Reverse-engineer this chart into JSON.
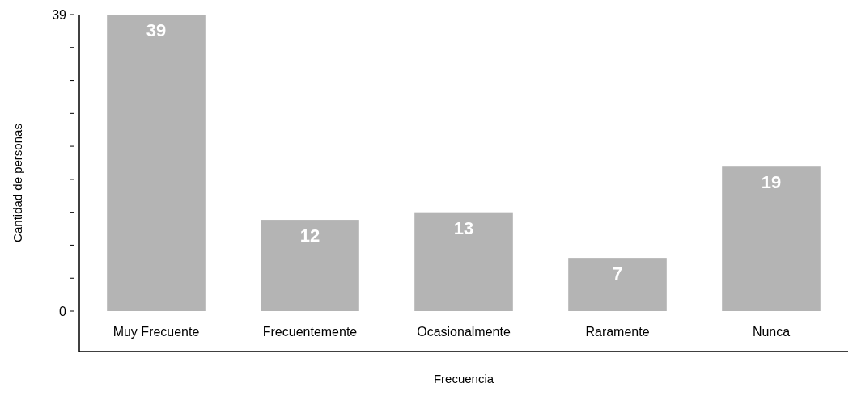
{
  "chart_data": {
    "type": "bar",
    "xlabel": "Frecuencia",
    "ylabel": "Cantidad de personas",
    "categories": [
      "Muy Frecuente",
      "Frecuentemente",
      "Ocasionalmente",
      "Raramente",
      "Nunca"
    ],
    "values": [
      39,
      12,
      13,
      7,
      19
    ],
    "color": "#b4b4b4",
    "data_labels": true,
    "ylim": [
      0,
      39
    ],
    "yticks": [
      0,
      {
        "value": 4.33,
        "label": null
      },
      {
        "value": 8.67,
        "label": null
      },
      {
        "value": 13,
        "label": null
      },
      {
        "value": 17.33,
        "label": null
      },
      {
        "value": 21.67,
        "label": null
      },
      {
        "value": 26,
        "label": null
      },
      {
        "value": 30.33,
        "label": null
      },
      {
        "value": 34.67,
        "label": null
      },
      39
    ],
    "grid": false
  }
}
